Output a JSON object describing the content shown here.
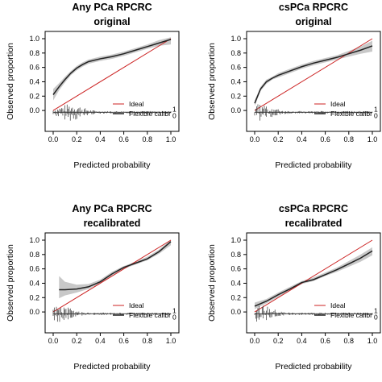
{
  "chart_data": [
    {
      "type": "line",
      "title": "Any PCa RPCRC",
      "subtitle": "original",
      "xlabel": "Predicted probability",
      "ylabel": "Observed proportion",
      "xlim": [
        0,
        1
      ],
      "ylim": [
        0,
        1
      ],
      "xticks": [
        "0.0",
        "0.2",
        "0.4",
        "0.6",
        "0.8",
        "1.0"
      ],
      "yticks": [
        "0.0",
        "0.2",
        "0.4",
        "0.6",
        "0.8",
        "1.0"
      ],
      "legend": {
        "placement": "bottom-right",
        "entries": [
          "Ideal",
          "Flexible calibr"
        ]
      },
      "series": [
        {
          "name": "Ideal",
          "color": "#cc2222",
          "x": [
            0,
            1
          ],
          "y": [
            0,
            1
          ]
        },
        {
          "name": "Flexible calibr",
          "color": "#222222",
          "x": [
            0.0,
            0.05,
            0.1,
            0.15,
            0.2,
            0.25,
            0.3,
            0.4,
            0.5,
            0.6,
            0.7,
            0.8,
            0.9,
            1.0
          ],
          "y": [
            0.22,
            0.33,
            0.43,
            0.52,
            0.59,
            0.64,
            0.68,
            0.72,
            0.75,
            0.79,
            0.84,
            0.89,
            0.94,
            0.99
          ],
          "ci_lower": [
            0.14,
            0.28,
            0.39,
            0.49,
            0.56,
            0.61,
            0.65,
            0.69,
            0.72,
            0.76,
            0.81,
            0.86,
            0.9,
            0.92
          ],
          "ci_upper": [
            0.3,
            0.38,
            0.47,
            0.55,
            0.62,
            0.67,
            0.71,
            0.75,
            0.78,
            0.82,
            0.87,
            0.92,
            0.98,
            1.02
          ]
        }
      ],
      "rug": {
        "baseline": -0.025,
        "density_peak": 0.15
      }
    },
    {
      "type": "line",
      "title": "csPCa RPCRC",
      "subtitle": "original",
      "xlabel": "Predicted probability",
      "ylabel": "Observed proportion",
      "xlim": [
        0,
        1
      ],
      "ylim": [
        0,
        1
      ],
      "xticks": [
        "0.0",
        "0.2",
        "0.4",
        "0.6",
        "0.8",
        "1.0"
      ],
      "yticks": [
        "0.0",
        "0.2",
        "0.4",
        "0.6",
        "0.8",
        "1.0"
      ],
      "legend": {
        "placement": "bottom-right",
        "entries": [
          "Ideal",
          "Flexible calibr"
        ]
      },
      "series": [
        {
          "name": "Ideal",
          "color": "#cc2222",
          "x": [
            0,
            1
          ],
          "y": [
            0,
            1
          ]
        },
        {
          "name": "Flexible calibr",
          "color": "#222222",
          "x": [
            0.0,
            0.05,
            0.1,
            0.15,
            0.2,
            0.3,
            0.4,
            0.5,
            0.6,
            0.7,
            0.8,
            0.9,
            1.0
          ],
          "y": [
            0.1,
            0.3,
            0.4,
            0.45,
            0.49,
            0.55,
            0.61,
            0.66,
            0.7,
            0.74,
            0.79,
            0.84,
            0.9
          ],
          "ci_lower": [
            0.06,
            0.27,
            0.37,
            0.43,
            0.46,
            0.52,
            0.58,
            0.63,
            0.67,
            0.71,
            0.75,
            0.79,
            0.82
          ],
          "ci_upper": [
            0.14,
            0.33,
            0.43,
            0.47,
            0.52,
            0.58,
            0.64,
            0.69,
            0.73,
            0.77,
            0.83,
            0.89,
            0.97
          ]
        }
      ],
      "rug": {
        "baseline": -0.025,
        "density_peak": 0.05
      }
    },
    {
      "type": "line",
      "title": "Any PCa RPCRC",
      "subtitle": "recalibrated",
      "xlabel": "Predicted probability",
      "ylabel": "Observed proportion",
      "xlim": [
        0,
        1
      ],
      "ylim": [
        0,
        1
      ],
      "xticks": [
        "0.0",
        "0.2",
        "0.4",
        "0.6",
        "0.8",
        "1.0"
      ],
      "yticks": [
        "0.0",
        "0.2",
        "0.4",
        "0.6",
        "0.8",
        "1.0"
      ],
      "legend": {
        "placement": "bottom-right",
        "entries": [
          "Ideal",
          "Flexible calibr"
        ]
      },
      "series": [
        {
          "name": "Ideal",
          "color": "#cc2222",
          "x": [
            0,
            1
          ],
          "y": [
            0,
            1
          ]
        },
        {
          "name": "Flexible calibr",
          "color": "#222222",
          "x": [
            0.05,
            0.1,
            0.2,
            0.3,
            0.4,
            0.5,
            0.6,
            0.7,
            0.8,
            0.9,
            1.0
          ],
          "y": [
            0.31,
            0.31,
            0.32,
            0.35,
            0.42,
            0.53,
            0.62,
            0.68,
            0.74,
            0.84,
            0.98
          ],
          "ci_lower": [
            0.19,
            0.23,
            0.27,
            0.32,
            0.4,
            0.51,
            0.6,
            0.66,
            0.72,
            0.81,
            0.93
          ],
          "ci_upper": [
            0.5,
            0.42,
            0.38,
            0.39,
            0.45,
            0.56,
            0.64,
            0.7,
            0.77,
            0.87,
            1.01
          ]
        }
      ],
      "rug": {
        "baseline": -0.025,
        "density_peak": 0.05
      }
    },
    {
      "type": "line",
      "title": "csPCa RPCRC",
      "subtitle": "recalibrated",
      "xlabel": "Predicted probability",
      "ylabel": "Observed proportion",
      "xlim": [
        0,
        1
      ],
      "ylim": [
        0,
        1
      ],
      "xticks": [
        "0.0",
        "0.2",
        "0.4",
        "0.6",
        "0.8",
        "1.0"
      ],
      "yticks": [
        "0.0",
        "0.2",
        "0.4",
        "0.6",
        "0.8",
        "1.0"
      ],
      "legend": {
        "placement": "bottom-right",
        "entries": [
          "Ideal",
          "Flexible calibr"
        ]
      },
      "series": [
        {
          "name": "Ideal",
          "color": "#cc2222",
          "x": [
            0,
            1
          ],
          "y": [
            0,
            1
          ]
        },
        {
          "name": "Flexible calibr",
          "color": "#222222",
          "x": [
            0.0,
            0.1,
            0.2,
            0.3,
            0.4,
            0.5,
            0.6,
            0.7,
            0.8,
            0.9,
            1.0
          ],
          "y": [
            0.08,
            0.15,
            0.24,
            0.32,
            0.41,
            0.45,
            0.52,
            0.59,
            0.67,
            0.75,
            0.85
          ],
          "ci_lower": [
            0.04,
            0.12,
            0.21,
            0.3,
            0.39,
            0.43,
            0.5,
            0.56,
            0.63,
            0.7,
            0.79
          ],
          "ci_upper": [
            0.13,
            0.18,
            0.27,
            0.35,
            0.43,
            0.48,
            0.55,
            0.62,
            0.71,
            0.8,
            0.9
          ]
        }
      ],
      "rug": {
        "baseline": -0.025,
        "density_peak": 0.05
      }
    }
  ]
}
